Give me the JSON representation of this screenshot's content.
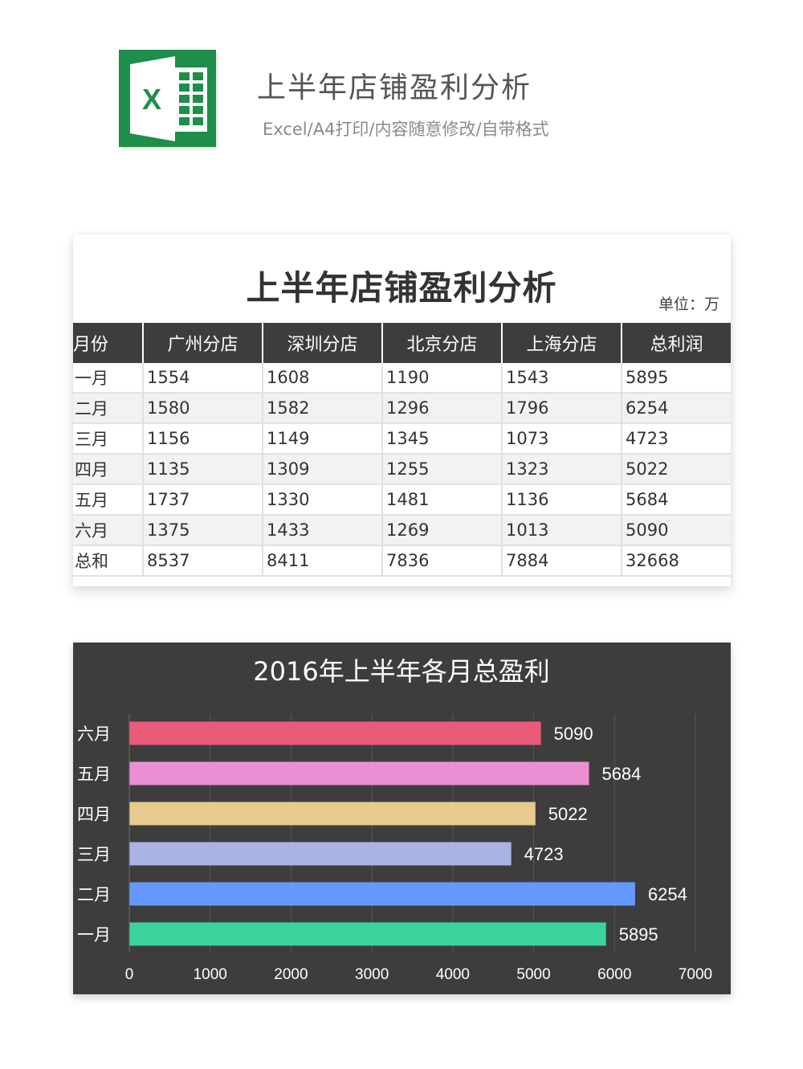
{
  "header": {
    "title": "上半年店铺盈利分析",
    "subtitle": "Excel/A4打印/内容随意修改/自带格式",
    "logo_letter": "X"
  },
  "table": {
    "title": "上半年店铺盈利分析",
    "unit": "单位：万",
    "columns": [
      "月份",
      "广州分店",
      "深圳分店",
      "北京分店",
      "上海分店",
      "总利润"
    ],
    "rows": [
      [
        "一月",
        "1554",
        "1608",
        "1190",
        "1543",
        "5895"
      ],
      [
        "二月",
        "1580",
        "1582",
        "1296",
        "1796",
        "6254"
      ],
      [
        "三月",
        "1156",
        "1149",
        "1345",
        "1073",
        "4723"
      ],
      [
        "四月",
        "1135",
        "1309",
        "1255",
        "1323",
        "5022"
      ],
      [
        "五月",
        "1737",
        "1330",
        "1481",
        "1136",
        "5684"
      ],
      [
        "六月",
        "1375",
        "1433",
        "1269",
        "1013",
        "5090"
      ],
      [
        "总和",
        "8537",
        "8411",
        "7836",
        "7884",
        "32668"
      ]
    ]
  },
  "colors": {
    "logo_green": "#1e8e4a",
    "table_header": "#3d3d3d",
    "chart_bg": "#3d3d3d"
  },
  "chart_data": {
    "type": "bar",
    "orientation": "horizontal",
    "title": "2016年上半年各月总盈利",
    "categories": [
      "一月",
      "二月",
      "三月",
      "四月",
      "五月",
      "六月"
    ],
    "values": [
      5895,
      6254,
      4723,
      5022,
      5684,
      5090
    ],
    "bar_colors": [
      "#3ad39b",
      "#6699ff",
      "#aab3e6",
      "#e8c98e",
      "#ec8fd2",
      "#ea5b7a"
    ],
    "xlim": [
      0,
      7000
    ],
    "xticks": [
      0,
      1000,
      2000,
      3000,
      4000,
      5000,
      6000,
      7000
    ],
    "grid": true,
    "data_labels": true,
    "legend": "none"
  }
}
